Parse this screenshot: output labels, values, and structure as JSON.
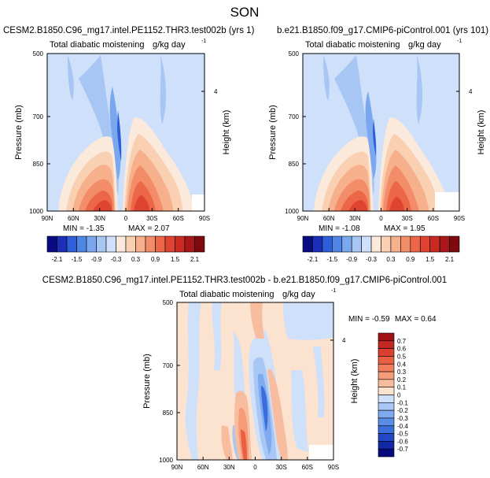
{
  "figure": {
    "title": "SON"
  },
  "chart_data": [
    {
      "type": "heatmap",
      "id": "top-left",
      "title": "CESM2.B1850.C96_mg17.intel.PE1152.THR3.test002b (yrs 1)",
      "field_label": "Total diabatic moistening",
      "units": "g/kg day",
      "units_exp": "-1",
      "ylabel": "Pressure (mb)",
      "ylabel_right": "Height (km)",
      "x_ticks": [
        "90N",
        "60N",
        "30N",
        "0",
        "30S",
        "60S",
        "90S"
      ],
      "y_ticks": [
        "500",
        "700",
        "850",
        "1000"
      ],
      "y_ticks_right": [
        "4"
      ],
      "ylim": [
        1000,
        500
      ],
      "min_label": "MIN = -1.35",
      "max_label": "MAX =  2.07",
      "min": -1.35,
      "max": 2.07
    },
    {
      "type": "heatmap",
      "id": "top-right",
      "title": "b.e21.B1850.f09_g17.CMIP6-piControl.001 (yrs 101)",
      "field_label": "Total diabatic moistening",
      "units": "g/kg day",
      "units_exp": "-1",
      "ylabel": "Pressure (mb)",
      "ylabel_right": "Height (km)",
      "x_ticks": [
        "90N",
        "60N",
        "30N",
        "0",
        "30S",
        "60S",
        "90S"
      ],
      "y_ticks": [
        "500",
        "700",
        "850",
        "1000"
      ],
      "y_ticks_right": [
        "4"
      ],
      "ylim": [
        1000,
        500
      ],
      "min_label": "MIN = -1.08",
      "max_label": "MAX =  1.95",
      "min": -1.08,
      "max": 1.95
    },
    {
      "type": "heatmap",
      "id": "difference",
      "title": "CESM2.B1850.C96_mg17.intel.PE1152.THR3.test002b - b.e21.B1850.f09_g17.CMIP6-piControl.001",
      "field_label": "Total diabatic moistening",
      "units": "g/kg day",
      "units_exp": "-1",
      "ylabel": "Pressure (mb)",
      "ylabel_right": "Height (km)",
      "x_ticks": [
        "90N",
        "60N",
        "30N",
        "0",
        "30S",
        "60S",
        "90S"
      ],
      "y_ticks": [
        "500",
        "700",
        "850",
        "1000"
      ],
      "y_ticks_right": [
        "4"
      ],
      "ylim": [
        1000,
        500
      ],
      "min_label": "MIN = -0.59",
      "max_label": "MAX =  0.64",
      "min": -0.59,
      "max": 0.64
    }
  ],
  "colorbar_top": {
    "labels": [
      "-2.1",
      "-1.5",
      "-0.9",
      "-0.3",
      "0.3",
      "0.9",
      "1.5",
      "2.1"
    ],
    "colors": [
      "#0a0a82",
      "#1c2fb8",
      "#2f5fd8",
      "#4f86e6",
      "#7aa8ef",
      "#a7c6f4",
      "#cfe0fa",
      "#fbeadc",
      "#f9d0b2",
      "#f6b08c",
      "#f38c68",
      "#ec6748",
      "#df4432",
      "#c92a22",
      "#a9171a",
      "#7c0a0e"
    ]
  },
  "colorbar_diff": {
    "labels": [
      "0.7",
      "0.6",
      "0.5",
      "0.4",
      "0.3",
      "0.2",
      "0.1",
      "0",
      "-0.1",
      "-0.2",
      "-0.3",
      "-0.4",
      "-0.5",
      "-0.6",
      "-0.7"
    ],
    "colors": [
      "#9e1014",
      "#c32822",
      "#d9402f",
      "#ea5f43",
      "#f17d5c",
      "#f59b78",
      "#f8bd9e",
      "#fce3cf",
      "#cfe0fa",
      "#a9c7f5",
      "#7faaf0",
      "#5a8de8",
      "#3a6edd",
      "#2347c7",
      "#1228a6",
      "#090980"
    ]
  }
}
